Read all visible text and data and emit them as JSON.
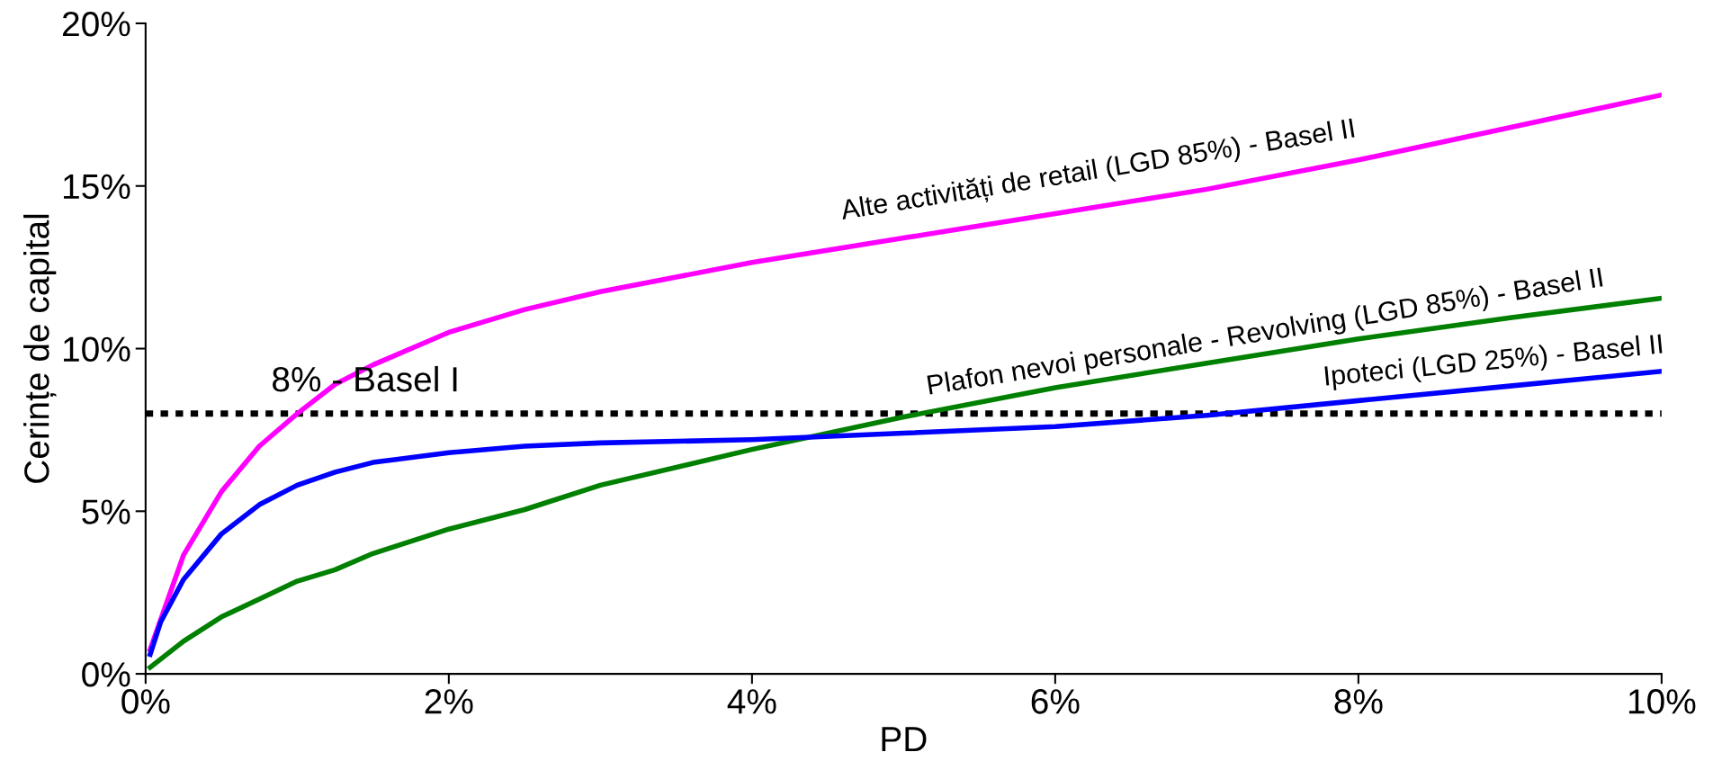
{
  "chart_data": {
    "type": "line",
    "xlabel": "PD",
    "ylabel": "Cerințe de capital",
    "xlim": [
      0,
      10
    ],
    "ylim": [
      0,
      20
    ],
    "xticks": [
      {
        "value": 0,
        "label": "0%"
      },
      {
        "value": 2,
        "label": "2%"
      },
      {
        "value": 4,
        "label": "4%"
      },
      {
        "value": 6,
        "label": "6%"
      },
      {
        "value": 8,
        "label": "8%"
      },
      {
        "value": 10,
        "label": "10%"
      }
    ],
    "yticks": [
      {
        "value": 0,
        "label": "0%"
      },
      {
        "value": 5,
        "label": "5%"
      },
      {
        "value": 10,
        "label": "10%"
      },
      {
        "value": 15,
        "label": "15%"
      },
      {
        "value": 20,
        "label": "20%"
      }
    ],
    "grid": false,
    "legend": false,
    "marker": "none",
    "line_style": "solid",
    "series": [
      {
        "name": "Alte activități de retail (LGD 85%) - Basel II",
        "color": "#ff00ff",
        "x": [
          0.03,
          0.25,
          0.5,
          0.75,
          1,
          1.25,
          1.5,
          2,
          2.5,
          3,
          4,
          5,
          6,
          7,
          8,
          9,
          10
        ],
        "values": [
          0.75,
          3.65,
          5.6,
          7.0,
          8.0,
          8.9,
          9.5,
          10.5,
          11.2,
          11.75,
          12.65,
          13.4,
          14.15,
          14.9,
          15.8,
          16.8,
          17.8
        ]
      },
      {
        "name": "Plafon nevoi personale - Revolving (LGD 85%) - Basel II",
        "color": "#008000",
        "x": [
          0.03,
          0.25,
          0.5,
          0.75,
          1,
          1.25,
          1.5,
          2,
          2.5,
          3,
          4,
          5,
          6,
          7,
          8,
          9,
          10
        ],
        "values": [
          0.2,
          1.0,
          1.75,
          2.3,
          2.85,
          3.2,
          3.7,
          4.45,
          5.05,
          5.8,
          6.9,
          7.9,
          8.8,
          9.55,
          10.3,
          10.95,
          11.55
        ]
      },
      {
        "name": "Ipoteci (LGD 25%) - Basel II",
        "color": "#0000ff",
        "x": [
          0.03,
          0.1,
          0.25,
          0.5,
          0.75,
          1,
          1.25,
          1.5,
          2,
          2.5,
          3,
          4,
          5,
          6,
          7,
          8,
          9,
          10
        ],
        "values": [
          0.6,
          1.6,
          2.9,
          4.3,
          5.2,
          5.8,
          6.2,
          6.5,
          6.8,
          7.0,
          7.1,
          7.2,
          7.4,
          7.6,
          7.95,
          8.4,
          8.85,
          9.3
        ]
      }
    ],
    "ref_lines": [
      {
        "axis": "y",
        "value": 8,
        "label": "8% - Basel I",
        "color": "#000000",
        "line_style": "dashed"
      }
    ]
  }
}
